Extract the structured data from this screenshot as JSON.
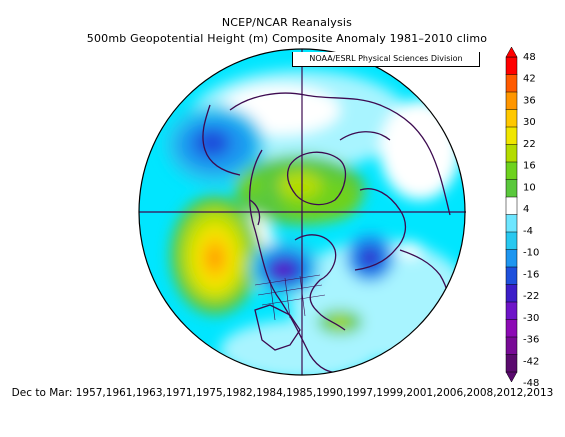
{
  "header": {
    "title_line1": "NCEP/NCAR Reanalysis",
    "title_line2": "500mb Geopotential Height (m) Composite Anomaly 1981–2010 climo",
    "credit": "NOAA/ESRL Physical Sciences Division"
  },
  "footer": {
    "composite_years": "Dec to Mar: 1957,1961,1963,1971,1975,1982,1984,1985,1990,1997,1999,2001,2006,2008,2012,2013"
  },
  "colorbar": {
    "labels": [
      "48",
      "42",
      "36",
      "30",
      "22",
      "16",
      "10",
      "4",
      "-4",
      "-10",
      "-16",
      "-22",
      "-30",
      "-36",
      "-42",
      "-48"
    ],
    "colors": [
      "#ff0000",
      "#ff5a00",
      "#ff9600",
      "#ffc800",
      "#f0e600",
      "#b4dc00",
      "#6ed21e",
      "#5ac83c",
      "#ffffff",
      "#6ee6ff",
      "#28c8f0",
      "#1e96f0",
      "#1e50dc",
      "#3c1ec8",
      "#6e14c8",
      "#8c0ab4",
      "#780a96",
      "#5a0a6e"
    ]
  },
  "map": {
    "projection": "north-polar-stereographic",
    "land_outline_color": "#3c0a50",
    "background_fill": "#00e6ff"
  }
}
